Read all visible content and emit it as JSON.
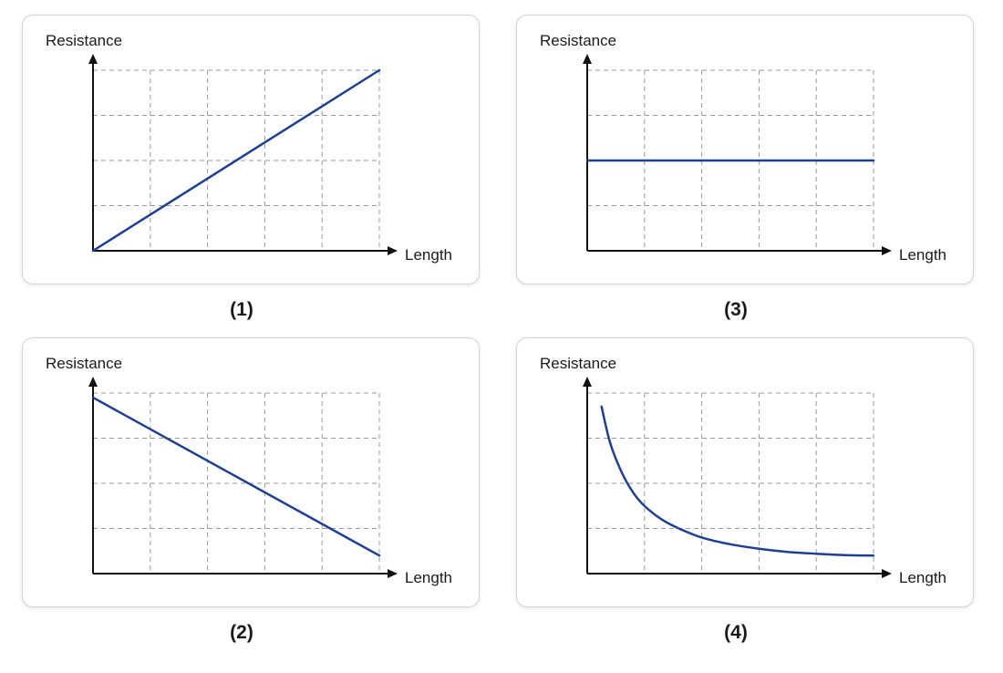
{
  "colors": {
    "line": "#1f3f8f",
    "axis": "#111111",
    "grid": "#9a9a9a"
  },
  "panels": [
    {
      "caption": "(1)",
      "ylabel": "Resistance",
      "xlabel": "Length"
    },
    {
      "caption": "(3)",
      "ylabel": "Resistance",
      "xlabel": "Length"
    },
    {
      "caption": "(2)",
      "ylabel": "Resistance",
      "xlabel": "Length"
    },
    {
      "caption": "(4)",
      "ylabel": "Resistance",
      "xlabel": "Length"
    }
  ],
  "chart_data": [
    {
      "type": "line",
      "title": "",
      "xlabel": "Length",
      "ylabel": "Resistance",
      "xlim": [
        0,
        5
      ],
      "ylim": [
        0,
        4
      ],
      "grid": true,
      "series": [
        {
          "x": [
            0,
            5
          ],
          "y": [
            0,
            4
          ]
        }
      ]
    },
    {
      "type": "line",
      "title": "",
      "xlabel": "Length",
      "ylabel": "Resistance",
      "xlim": [
        0,
        5
      ],
      "ylim": [
        0,
        4
      ],
      "grid": true,
      "series": [
        {
          "x": [
            0,
            5
          ],
          "y": [
            2,
            2
          ]
        }
      ]
    },
    {
      "type": "line",
      "title": "",
      "xlabel": "Length",
      "ylabel": "Resistance",
      "xlim": [
        0,
        5
      ],
      "ylim": [
        0,
        4
      ],
      "grid": true,
      "series": [
        {
          "x": [
            0,
            5
          ],
          "y": [
            3.9,
            0.4
          ]
        }
      ]
    },
    {
      "type": "line",
      "title": "",
      "xlabel": "Length",
      "ylabel": "Resistance",
      "xlim": [
        0,
        5
      ],
      "ylim": [
        0,
        4
      ],
      "grid": true,
      "series": [
        {
          "x": [
            0.25,
            0.4,
            0.6,
            0.8,
            1.0,
            1.3,
            1.6,
            2.0,
            2.5,
            3.0,
            3.5,
            4.0,
            4.5,
            5.0
          ],
          "y": [
            3.7,
            2.9,
            2.25,
            1.8,
            1.5,
            1.2,
            1.0,
            0.8,
            0.65,
            0.55,
            0.48,
            0.44,
            0.41,
            0.4
          ]
        }
      ]
    }
  ]
}
